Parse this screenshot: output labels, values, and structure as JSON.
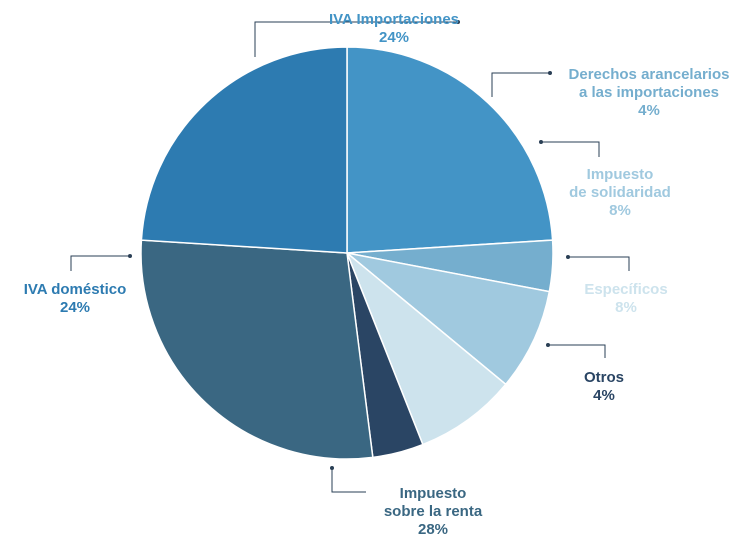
{
  "chart_data": {
    "type": "pie",
    "title": "",
    "start_angle_deg": 0,
    "direction": "clockwise",
    "slices": [
      {
        "label_lines": [
          "IVA Importaciones"
        ],
        "value": 24,
        "value_label": "24%",
        "color": "#4394c6"
      },
      {
        "label_lines": [
          "Derechos arancelarios",
          "a las importaciones"
        ],
        "value": 4,
        "value_label": "4%",
        "color": "#75aece"
      },
      {
        "label_lines": [
          "Impuesto",
          "de solidaridad"
        ],
        "value": 8,
        "value_label": "8%",
        "color": "#a0c9df"
      },
      {
        "label_lines": [
          "Específicos"
        ],
        "value": 8,
        "value_label": "8%",
        "color": "#cde3ed"
      },
      {
        "label_lines": [
          "Otros"
        ],
        "value": 4,
        "value_label": "4%",
        "color": "#2a4564"
      },
      {
        "label_lines": [
          "Impuesto",
          "sobre la renta"
        ],
        "value": 28,
        "value_label": "28%",
        "color": "#3a6782"
      },
      {
        "label_lines": [
          "IVA doméstico"
        ],
        "value": 24,
        "value_label": "24%",
        "color": "#2d7bb1"
      }
    ]
  }
}
